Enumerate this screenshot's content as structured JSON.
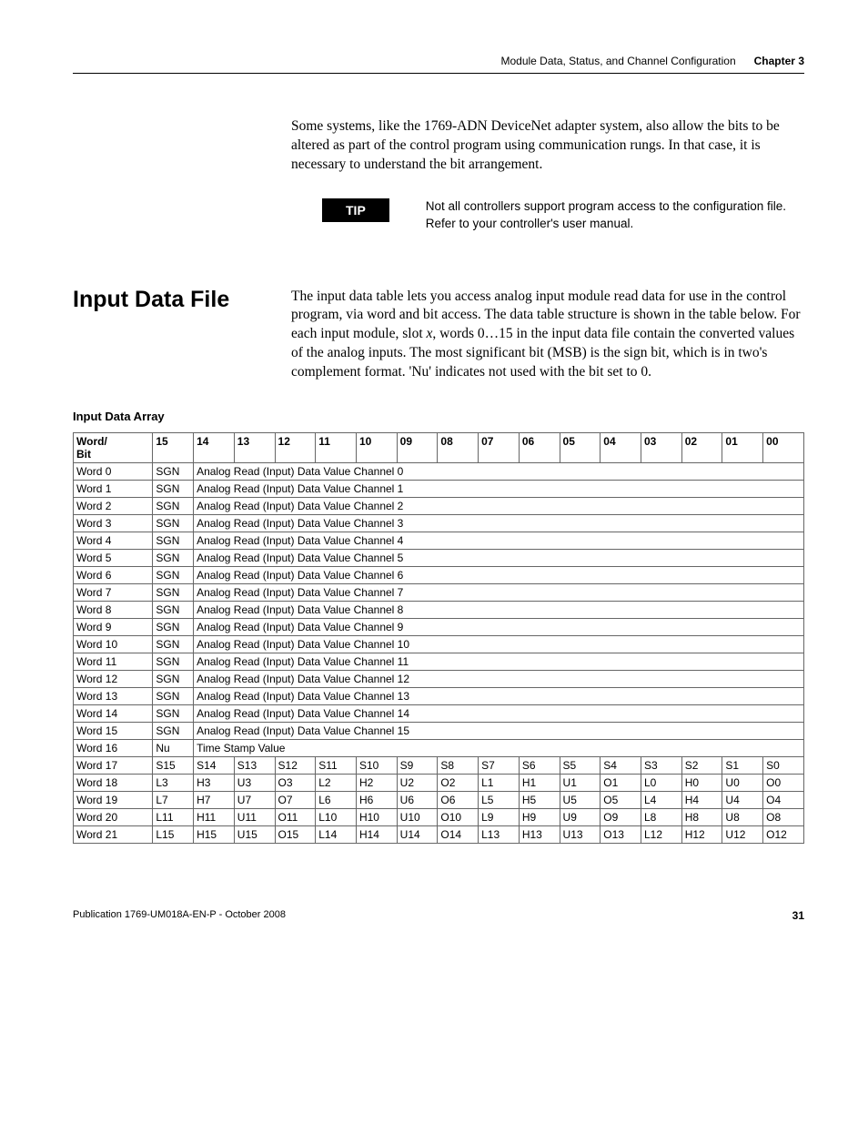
{
  "header": {
    "title": "Module Data, Status, and Channel Configuration",
    "chapter": "Chapter 3"
  },
  "intro": "Some systems, like the 1769-ADN DeviceNet adapter system, also allow the bits to be altered as part of the control program using communication rungs. In that case, it is necessary to understand the bit arrangement.",
  "tip": {
    "label": "TIP",
    "text": "Not all controllers support program access to the configuration file. Refer to your controller's user manual."
  },
  "section": {
    "heading": "Input Data File",
    "body_pre": "The input data table lets you access analog input module read data for use in the control program, via word and bit access. The data table structure is shown in the table below. For each input module, slot ",
    "body_ital": "x",
    "body_post": ", words 0…15 in the input data file contain the converted values of the analog inputs. The most significant bit (MSB) is the sign bit, which is in two's complement format. 'Nu' indicates not used with the bit set to 0."
  },
  "table": {
    "caption": "Input Data Array",
    "head_first": "Word/\nBit",
    "bits": [
      "15",
      "14",
      "13",
      "12",
      "11",
      "10",
      "09",
      "08",
      "07",
      "06",
      "05",
      "04",
      "03",
      "02",
      "01",
      "00"
    ],
    "rows_span": [
      {
        "w": "Word 0",
        "c15": "SGN",
        "rest": "Analog Read (Input) Data Value Channel 0"
      },
      {
        "w": "Word 1",
        "c15": "SGN",
        "rest": "Analog Read (Input) Data Value Channel 1"
      },
      {
        "w": "Word 2",
        "c15": "SGN",
        "rest": "Analog Read (Input) Data Value Channel 2"
      },
      {
        "w": "Word 3",
        "c15": "SGN",
        "rest": "Analog Read (Input) Data Value Channel 3"
      },
      {
        "w": "Word 4",
        "c15": "SGN",
        "rest": "Analog Read (Input) Data Value Channel 4"
      },
      {
        "w": "Word 5",
        "c15": "SGN",
        "rest": "Analog Read (Input) Data Value Channel 5"
      },
      {
        "w": "Word 6",
        "c15": "SGN",
        "rest": "Analog Read (Input) Data Value Channel 6"
      },
      {
        "w": "Word 7",
        "c15": "SGN",
        "rest": "Analog Read (Input) Data Value Channel 7"
      },
      {
        "w": "Word 8",
        "c15": "SGN",
        "rest": "Analog Read (Input) Data Value Channel 8"
      },
      {
        "w": "Word 9",
        "c15": "SGN",
        "rest": "Analog Read (Input) Data Value Channel 9"
      },
      {
        "w": "Word 10",
        "c15": "SGN",
        "rest": "Analog Read (Input) Data Value Channel 10"
      },
      {
        "w": "Word 11",
        "c15": "SGN",
        "rest": "Analog Read (Input) Data Value Channel 11"
      },
      {
        "w": "Word 12",
        "c15": "SGN",
        "rest": "Analog Read (Input) Data Value Channel 12"
      },
      {
        "w": "Word 13",
        "c15": "SGN",
        "rest": "Analog Read (Input) Data Value Channel 13"
      },
      {
        "w": "Word 14",
        "c15": "SGN",
        "rest": "Analog Read (Input) Data Value Channel 14"
      },
      {
        "w": "Word 15",
        "c15": "SGN",
        "rest": "Analog Read (Input) Data Value Channel 15"
      },
      {
        "w": "Word 16",
        "c15": "Nu",
        "rest": "Time Stamp Value"
      }
    ],
    "rows_full": [
      {
        "w": "Word 17",
        "cells": [
          "S15",
          "S14",
          "S13",
          "S12",
          "S11",
          "S10",
          "S9",
          "S8",
          "S7",
          "S6",
          "S5",
          "S4",
          "S3",
          "S2",
          "S1",
          "S0"
        ]
      },
      {
        "w": "Word 18",
        "cells": [
          "L3",
          "H3",
          "U3",
          "O3",
          "L2",
          "H2",
          "U2",
          "O2",
          "L1",
          "H1",
          "U1",
          "O1",
          "L0",
          "H0",
          "U0",
          "O0"
        ]
      },
      {
        "w": "Word 19",
        "cells": [
          "L7",
          "H7",
          "U7",
          "O7",
          "L6",
          "H6",
          "U6",
          "O6",
          "L5",
          "H5",
          "U5",
          "O5",
          "L4",
          "H4",
          "U4",
          "O4"
        ]
      },
      {
        "w": "Word 20",
        "cells": [
          "L11",
          "H11",
          "U11",
          "O11",
          "L10",
          "H10",
          "U10",
          "O10",
          "L9",
          "H9",
          "U9",
          "O9",
          "L8",
          "H8",
          "U8",
          "O8"
        ]
      },
      {
        "w": "Word 21",
        "cells": [
          "L15",
          "H15",
          "U15",
          "O15",
          "L14",
          "H14",
          "U14",
          "O14",
          "L13",
          "H13",
          "U13",
          "O13",
          "L12",
          "H12",
          "U12",
          "O12"
        ]
      }
    ]
  },
  "footer": {
    "pub": "Publication 1769-UM018A-EN-P - October 2008",
    "page": "31"
  }
}
